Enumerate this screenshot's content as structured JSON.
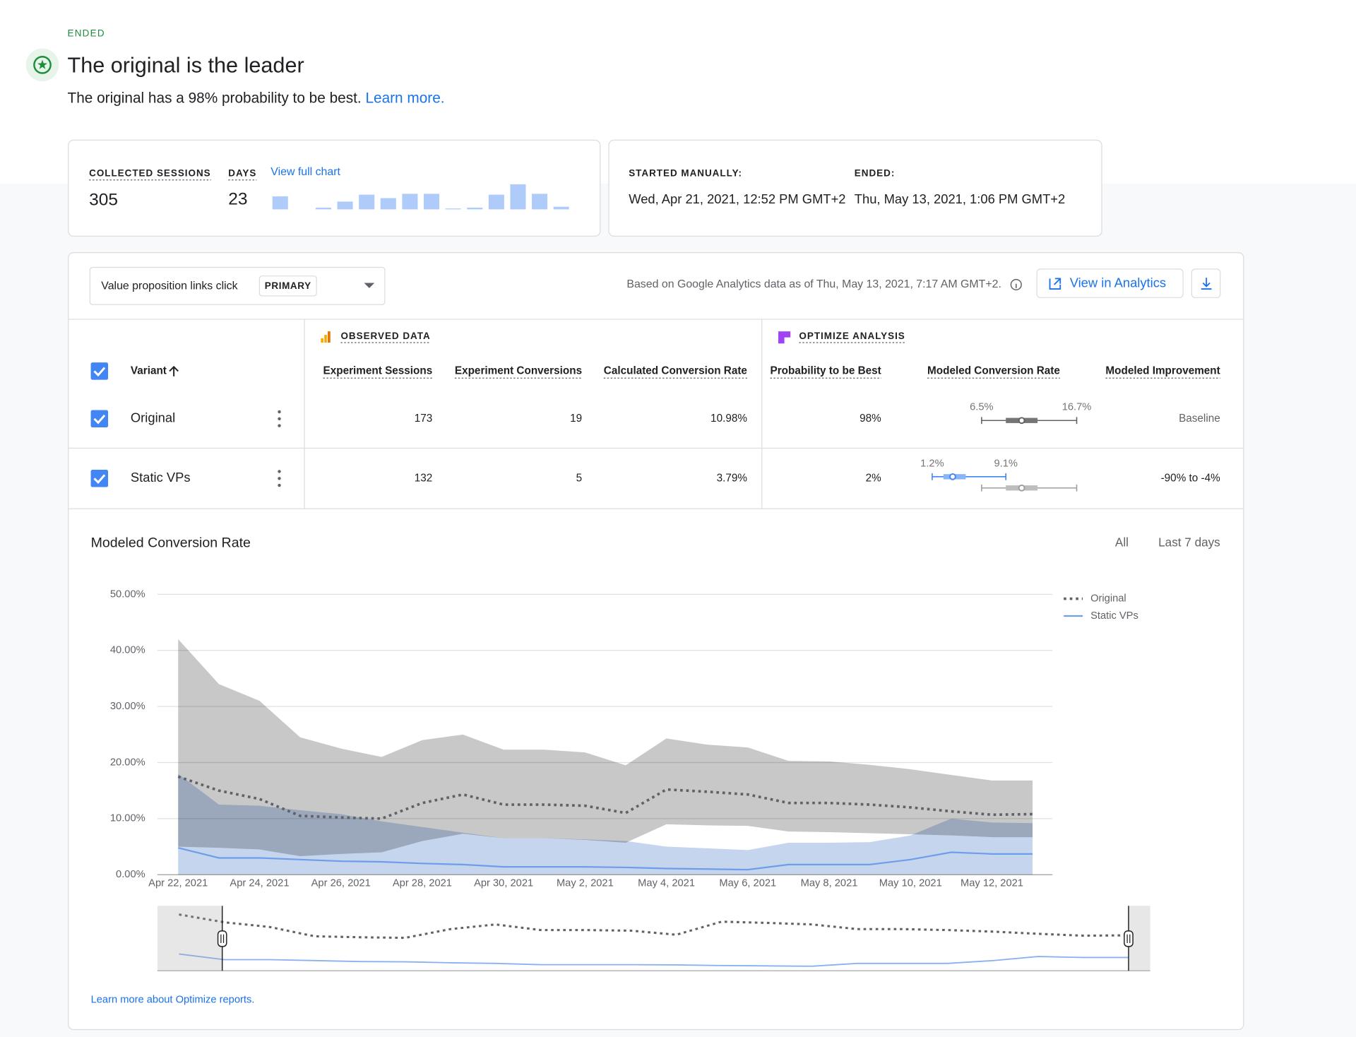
{
  "status": "ENDED",
  "header": {
    "title": "The original is the leader",
    "subtitle": "The original has a 98% probability to be best.",
    "link": "Learn more."
  },
  "summary": {
    "sessions_label": "COLLECTED SESSIONS",
    "sessions": "305",
    "days_label": "DAYS",
    "days": "23",
    "chart_link": "View full chart",
    "sparkline": [
      15,
      0,
      2,
      9,
      17,
      13,
      18,
      18,
      1,
      2,
      17,
      29,
      18,
      3
    ]
  },
  "dates": {
    "started_label": "STARTED MANUALLY:",
    "started": "Wed, Apr 21, 2021, 12:52 PM GMT+2",
    "ended_label": "ENDED:",
    "ended": "Thu, May 13, 2021, 1:06 PM GMT+2"
  },
  "toolbar": {
    "objective": "Value proposition links click",
    "badge": "PRIMARY",
    "note": "Based on Google Analytics data as of Thu, May 13, 2021, 7:17 AM GMT+2.",
    "analytics_button": "View in Analytics"
  },
  "table": {
    "groups": [
      "OBSERVED DATA",
      "OPTIMIZE ANALYSIS"
    ],
    "columns": [
      "Variant",
      "Experiment Sessions",
      "Experiment Conversions",
      "Calculated Conversion Rate",
      "Probability to be Best",
      "Modeled Conversion Rate",
      "Modeled Improvement"
    ],
    "rows": [
      {
        "name": "Original",
        "cells": [
          "173",
          "19",
          "10.98%",
          "98%"
        ],
        "interval": [
          6.5,
          16.7
        ],
        "interval_labels": [
          "6.5%",
          "16.7%"
        ],
        "box": [
          9.1,
          12.5
        ],
        "median": 10.8,
        "improvement": "Baseline"
      },
      {
        "name": "Static VPs",
        "cells": [
          "132",
          "5",
          "3.79%",
          "2%"
        ],
        "interval": [
          1.2,
          9.1
        ],
        "interval_labels": [
          "1.2%",
          "9.1%"
        ],
        "box": [
          2.4,
          4.8
        ],
        "median": 3.4,
        "improvement": "-90% to -4%"
      }
    ]
  },
  "chart_data": {
    "type": "line",
    "title": "Modeled Conversion Rate",
    "ranges": [
      "All",
      "Last 7 days"
    ],
    "categories": [
      "Apr 22, 2021",
      null,
      "Apr 24, 2021",
      null,
      "Apr 26, 2021",
      null,
      "Apr 28, 2021",
      null,
      "Apr 30, 2021",
      null,
      "May 2, 2021",
      null,
      "May 4, 2021",
      null,
      "May 6, 2021",
      null,
      "May 8, 2021",
      null,
      "May 10, 2021",
      null,
      "May 12, 2021",
      null
    ],
    "series": [
      {
        "name": "Original",
        "color": "#5f6368",
        "band_color": "#c8c8c8",
        "values": [
          17.5,
          15,
          13.5,
          10.5,
          10.2,
          10,
          12.8,
          14.3,
          12.5,
          12.5,
          12.3,
          11,
          15.2,
          14.8,
          14.3,
          12.8,
          12.8,
          12.5,
          12,
          11.3,
          10.7,
          10.8
        ],
        "upper": [
          42,
          34,
          31,
          24.5,
          22.5,
          21,
          24,
          25,
          22.3,
          22.3,
          21.8,
          19.5,
          24.3,
          23.2,
          22.7,
          20.3,
          20.2,
          19.6,
          18.8,
          17.8,
          16.8,
          16.8
        ],
        "lower": [
          5,
          4.8,
          4.5,
          3.3,
          3.7,
          4,
          6,
          7.3,
          6.5,
          6.5,
          6.2,
          5.7,
          9,
          8.8,
          8.7,
          7.7,
          7.6,
          7.4,
          7.2,
          7,
          6.7,
          6.7
        ]
      },
      {
        "name": "Static VPs",
        "color": "#6d9eeb",
        "band_color": "#c6d5ee",
        "values": [
          4.8,
          3,
          3,
          2.7,
          2.4,
          2.3,
          2,
          1.8,
          1.4,
          1.4,
          1.4,
          1.3,
          1.1,
          1,
          0.9,
          1.8,
          1.8,
          1.8,
          2.7,
          4,
          3.7,
          3.7
        ],
        "upper": [
          18,
          12.5,
          12.3,
          11.5,
          10.8,
          9.5,
          8.5,
          7.5,
          6.5,
          6.5,
          6.3,
          6,
          5,
          4.7,
          4.4,
          5.7,
          5.7,
          5.8,
          7,
          10,
          9.3,
          9.2
        ],
        "lower": [
          0,
          0,
          0,
          0,
          0,
          0,
          0,
          0,
          0,
          0,
          0,
          0,
          0,
          0,
          0,
          0,
          0,
          0,
          0,
          0,
          0,
          0
        ]
      }
    ],
    "ylim": [
      0,
      50
    ],
    "yticks": [
      {
        "value": 0,
        "label": "0.00%"
      },
      {
        "value": 10,
        "label": "10.00%"
      },
      {
        "value": 20,
        "label": "20.00%"
      },
      {
        "value": 30,
        "label": "30.00%"
      },
      {
        "value": 40,
        "label": "40.00%"
      },
      {
        "value": 50,
        "label": "50.00%"
      }
    ],
    "grid": true,
    "legend": "right"
  },
  "footer_link": "Learn more about Optimize reports."
}
